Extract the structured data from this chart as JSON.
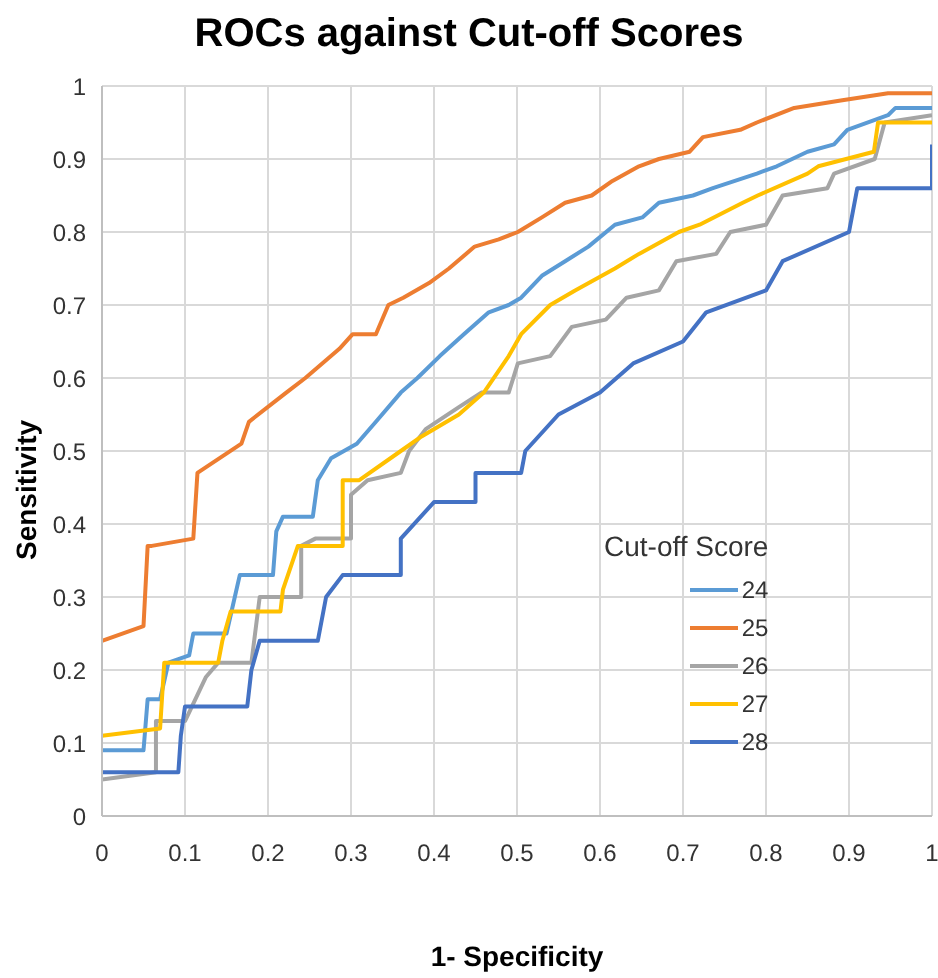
{
  "chart_data": {
    "type": "line",
    "title": "ROCs against Cut-off Scores",
    "xlabel": "1- Specificity",
    "ylabel": "Sensitivity",
    "legend_title": "Cut-off Score",
    "xlim": [
      0,
      1
    ],
    "ylim": [
      0,
      1
    ],
    "xticks": [
      0,
      0.1,
      0.2,
      0.3,
      0.4,
      0.5,
      0.6,
      0.7,
      0.8,
      0.9,
      1
    ],
    "yticks": [
      0,
      0.1,
      0.2,
      0.3,
      0.4,
      0.5,
      0.6,
      0.7,
      0.8,
      0.9,
      1
    ],
    "grid": true,
    "legend": "bottom right",
    "series": [
      {
        "name": "24",
        "color": "#5b9bd5",
        "x": [
          0,
          0.05,
          0.055,
          0.07,
          0.08,
          0.105,
          0.11,
          0.15,
          0.16,
          0.166,
          0.206,
          0.21,
          0.218,
          0.254,
          0.26,
          0.276,
          0.307,
          0.33,
          0.36,
          0.38,
          0.407,
          0.436,
          0.466,
          0.49,
          0.505,
          0.53,
          0.558,
          0.586,
          0.618,
          0.651,
          0.671,
          0.712,
          0.736,
          0.789,
          0.813,
          0.85,
          0.882,
          0.898,
          0.947,
          0.956,
          1
        ],
        "values": [
          0.09,
          0.09,
          0.16,
          0.16,
          0.21,
          0.22,
          0.25,
          0.25,
          0.3,
          0.33,
          0.33,
          0.39,
          0.41,
          0.41,
          0.46,
          0.49,
          0.51,
          0.54,
          0.58,
          0.6,
          0.63,
          0.66,
          0.69,
          0.7,
          0.71,
          0.74,
          0.76,
          0.78,
          0.81,
          0.82,
          0.84,
          0.85,
          0.86,
          0.88,
          0.89,
          0.91,
          0.92,
          0.94,
          0.96,
          0.97,
          0.97
        ]
      },
      {
        "name": "25",
        "color": "#ed7d31",
        "x": [
          0,
          0.05,
          0.055,
          0.06,
          0.11,
          0.115,
          0.168,
          0.177,
          0.222,
          0.245,
          0.286,
          0.302,
          0.33,
          0.345,
          0.363,
          0.394,
          0.418,
          0.449,
          0.478,
          0.501,
          0.53,
          0.558,
          0.59,
          0.615,
          0.647,
          0.671,
          0.708,
          0.724,
          0.769,
          0.789,
          0.834,
          0.89,
          0.947,
          1
        ],
        "values": [
          0.24,
          0.26,
          0.37,
          0.37,
          0.38,
          0.47,
          0.51,
          0.54,
          0.58,
          0.6,
          0.64,
          0.66,
          0.66,
          0.7,
          0.71,
          0.73,
          0.75,
          0.78,
          0.79,
          0.8,
          0.82,
          0.84,
          0.85,
          0.87,
          0.89,
          0.9,
          0.91,
          0.93,
          0.94,
          0.95,
          0.97,
          0.98,
          0.99,
          0.99
        ]
      },
      {
        "name": "26",
        "color": "#a5a5a5",
        "x": [
          0,
          0.065,
          0.065,
          0.1,
          0.125,
          0.14,
          0.18,
          0.19,
          0.24,
          0.24,
          0.257,
          0.3,
          0.3,
          0.32,
          0.36,
          0.37,
          0.39,
          0.43,
          0.457,
          0.49,
          0.501,
          0.54,
          0.566,
          0.607,
          0.632,
          0.671,
          0.692,
          0.74,
          0.757,
          0.8,
          0.82,
          0.874,
          0.882,
          0.931,
          0.943,
          1
        ],
        "values": [
          0.05,
          0.06,
          0.13,
          0.13,
          0.19,
          0.21,
          0.21,
          0.3,
          0.3,
          0.37,
          0.38,
          0.38,
          0.44,
          0.46,
          0.47,
          0.5,
          0.53,
          0.56,
          0.58,
          0.58,
          0.62,
          0.63,
          0.67,
          0.68,
          0.71,
          0.72,
          0.76,
          0.77,
          0.8,
          0.81,
          0.85,
          0.86,
          0.88,
          0.9,
          0.95,
          0.96
        ]
      },
      {
        "name": "27",
        "color": "#ffc000",
        "x": [
          0,
          0.07,
          0.075,
          0.14,
          0.145,
          0.155,
          0.215,
          0.218,
          0.236,
          0.29,
          0.29,
          0.31,
          0.36,
          0.36,
          0.385,
          0.43,
          0.46,
          0.49,
          0.505,
          0.54,
          0.57,
          0.618,
          0.647,
          0.695,
          0.72,
          0.772,
          0.79,
          0.85,
          0.863,
          0.93,
          0.935,
          1
        ],
        "values": [
          0.11,
          0.12,
          0.21,
          0.21,
          0.24,
          0.28,
          0.28,
          0.31,
          0.37,
          0.37,
          0.46,
          0.46,
          0.5,
          0.5,
          0.52,
          0.55,
          0.58,
          0.63,
          0.66,
          0.7,
          0.72,
          0.75,
          0.77,
          0.8,
          0.81,
          0.84,
          0.85,
          0.88,
          0.89,
          0.91,
          0.95,
          0.95
        ]
      },
      {
        "name": "28",
        "color": "#4472c4",
        "x": [
          0,
          0.092,
          0.095,
          0.1,
          0.175,
          0.18,
          0.19,
          0.26,
          0.27,
          0.29,
          0.36,
          0.36,
          0.4,
          0.45,
          0.45,
          0.505,
          0.51,
          0.55,
          0.6,
          0.64,
          0.7,
          0.728,
          0.8,
          0.82,
          0.9,
          0.91,
          1,
          1
        ],
        "values": [
          0.06,
          0.06,
          0.11,
          0.15,
          0.15,
          0.2,
          0.24,
          0.24,
          0.3,
          0.33,
          0.33,
          0.38,
          0.43,
          0.43,
          0.47,
          0.47,
          0.5,
          0.55,
          0.58,
          0.62,
          0.65,
          0.69,
          0.72,
          0.76,
          0.8,
          0.86,
          0.86,
          0.92
        ]
      }
    ]
  }
}
